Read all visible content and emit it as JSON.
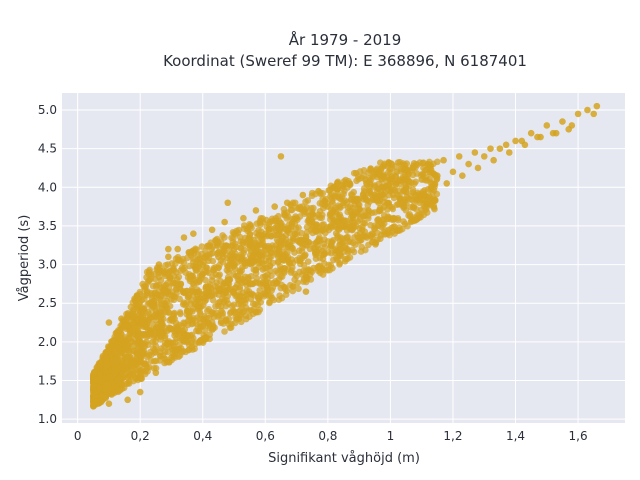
{
  "chart_data": {
    "type": "scatter",
    "title": "År 1979 - 2019",
    "subtitle": "Koordinat (Sweref 99 TM): E 368896, N 6187401",
    "xlabel": "Signifikant våghöjd (m)",
    "ylabel": "Vågperiod (s)",
    "xlim": [
      -0.05,
      1.75
    ],
    "ylim": [
      0.95,
      5.22
    ],
    "x_ticks": [
      0,
      0.2,
      0.4,
      0.6,
      0.8,
      1,
      1.2,
      1.4,
      1.6
    ],
    "x_tick_labels": [
      "0",
      "0,2",
      "0,4",
      "0,6",
      "0,8",
      "1",
      "1,2",
      "1,4",
      "1,6"
    ],
    "y_ticks": [
      1,
      1.5,
      2,
      2.5,
      3,
      3.5,
      4,
      4.5,
      5
    ],
    "y_tick_labels": [
      "1.0",
      "1.5",
      "2.0",
      "2.5",
      "3.0",
      "3.5",
      "4.0",
      "4.5",
      "5.0"
    ],
    "grid": true,
    "legend": "none",
    "colors": {
      "marker": "#d4a320",
      "plot_bg": "#e6e8f1",
      "grid": "#ffffff",
      "text": "#2a2f3a"
    },
    "series": [
      {
        "x": [
          0.06,
          0.08,
          0.1,
          0.12,
          0.15,
          0.18,
          0.2,
          0.22,
          0.25,
          0.28,
          0.3,
          0.33,
          0.36,
          0.4,
          0.45,
          0.5,
          0.55,
          0.6,
          0.65,
          0.7,
          0.75,
          0.8,
          0.85,
          0.9,
          0.95,
          1.0,
          1.05,
          1.1,
          1.15,
          1.2,
          1.25,
          1.3,
          1.35,
          1.4,
          1.45,
          1.5,
          1.55,
          1.6,
          1.63,
          1.66,
          0.09,
          0.13,
          0.17,
          0.21,
          0.24,
          0.27,
          0.31,
          0.35,
          0.38,
          0.42,
          0.48,
          0.52,
          0.58,
          0.62,
          0.68,
          0.73,
          0.78,
          0.83,
          0.88,
          0.93,
          0.98,
          1.03,
          1.08,
          1.13,
          1.18,
          1.23,
          1.28,
          1.33,
          1.38,
          1.43,
          1.48,
          1.53,
          1.58,
          0.11,
          0.14,
          0.19,
          0.23,
          0.26,
          0.29,
          0.32,
          0.34,
          0.37,
          0.43,
          0.47,
          0.53,
          0.57,
          0.63,
          0.67,
          0.72,
          0.77,
          0.82,
          0.87,
          0.92,
          0.97,
          1.02,
          1.07,
          1.12,
          1.17,
          1.22,
          1.27,
          1.32,
          1.37,
          1.42,
          1.47,
          1.52,
          1.57,
          1.65,
          0.07,
          0.1,
          0.16,
          0.2,
          0.25,
          0.3,
          0.35,
          0.4,
          0.46,
          0.51,
          0.56,
          0.6,
          0.66,
          0.71,
          0.76,
          0.81,
          0.86,
          0.91,
          0.96,
          1.01,
          0.1,
          0.29,
          0.48,
          0.65,
          0.73
        ],
        "y": [
          1.5,
          1.4,
          1.55,
          1.6,
          1.8,
          1.95,
          2.1,
          2.2,
          2.4,
          2.5,
          2.6,
          2.75,
          2.85,
          3.0,
          3.1,
          3.2,
          3.3,
          3.4,
          3.5,
          3.6,
          3.65,
          3.75,
          3.8,
          3.85,
          3.9,
          3.95,
          4.0,
          4.1,
          4.15,
          4.2,
          4.3,
          4.4,
          4.5,
          4.6,
          4.7,
          4.8,
          4.85,
          4.95,
          5.0,
          5.05,
          1.3,
          1.5,
          1.7,
          1.85,
          2.0,
          2.2,
          2.3,
          2.4,
          2.55,
          2.65,
          2.8,
          2.9,
          3.05,
          3.15,
          3.25,
          3.35,
          3.45,
          3.55,
          3.6,
          3.7,
          3.75,
          3.85,
          3.9,
          4.0,
          4.05,
          4.15,
          4.25,
          4.35,
          4.45,
          4.55,
          4.65,
          4.7,
          4.8,
          2.0,
          2.3,
          2.6,
          2.8,
          3.0,
          3.1,
          3.2,
          3.35,
          3.4,
          3.45,
          3.55,
          3.6,
          3.7,
          3.75,
          3.8,
          3.9,
          3.95,
          4.0,
          4.05,
          4.1,
          4.15,
          4.2,
          4.25,
          4.3,
          4.35,
          4.4,
          4.45,
          4.5,
          4.55,
          4.6,
          4.65,
          4.7,
          4.75,
          4.95,
          1.4,
          1.2,
          1.25,
          1.35,
          1.6,
          1.8,
          2.0,
          2.2,
          2.4,
          2.6,
          2.75,
          2.85,
          2.95,
          3.05,
          3.15,
          3.25,
          3.35,
          3.45,
          3.5,
          3.6,
          2.25,
          3.2,
          3.8,
          4.4,
          2.65
        ]
      }
    ]
  }
}
